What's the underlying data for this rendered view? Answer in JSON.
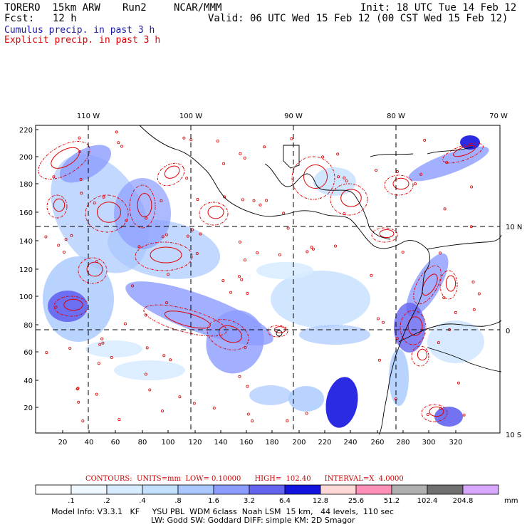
{
  "header": {
    "model": "TORERO  15km ARW",
    "run": "Run2",
    "org": "NCAR/MMM",
    "init": "Init: 18 UTC Tue 14 Feb 12",
    "fcst_label": "Fcst:",
    "fcst_value": "12 h",
    "valid": "Valid: 06 UTC Wed 15 Feb 12 (00 CST Wed 15 Feb 12)"
  },
  "legend": {
    "cumulus": "Cumulus precip. in past 3 h",
    "cumulus_color": "#1a1aa8",
    "explicit": "Explicit precip. in past 3 h",
    "explicit_color": "#dd0000"
  },
  "map": {
    "lon_labels": [
      "110 W",
      "100 W",
      "90 W",
      "80 W",
      "70 W"
    ],
    "lat_labels": [
      "10 N",
      "0",
      "10 S"
    ],
    "y_ticks": [
      "220",
      "200",
      "180",
      "160",
      "140",
      "120",
      "100",
      "80",
      "60",
      "40",
      "20"
    ],
    "x_ticks": [
      "20",
      "40",
      "60",
      "80",
      "100",
      "120",
      "140",
      "160",
      "180",
      "200",
      "220",
      "240",
      "260",
      "280",
      "300",
      "320"
    ],
    "coast_color": "#000000",
    "contour_color": "#e00000"
  },
  "contours": {
    "text": "CONTOURS:  UNITS=mm  LOW= 0.10000      HIGH=  102.40      INTERVAL=X  4.0000"
  },
  "colorbar": {
    "labels": [
      ".1",
      ".2",
      ".4",
      ".8",
      "1.6",
      "3.2",
      "6.4",
      "12.8",
      "25.6",
      "51.2",
      "102.4",
      "204.8"
    ],
    "unit": "mm",
    "colors": [
      "#ffffff",
      "#f0f8ff",
      "#d8ecff",
      "#c4e0ff",
      "#a8c8ff",
      "#8c9cff",
      "#6464f0",
      "#1414e0",
      "#ffd8d8",
      "#ff90b8",
      "#b0b0b0",
      "#707070",
      "#d8a8ff"
    ]
  },
  "footer": {
    "line1": "Model Info: V3.3.1   KF     YSU PBL  WDM 6class  Noah LSM  15 km,   44 levels,  110 sec",
    "line2": "LW: Godd SW: Goddard DIFF: simple KM: 2D Smagor"
  }
}
